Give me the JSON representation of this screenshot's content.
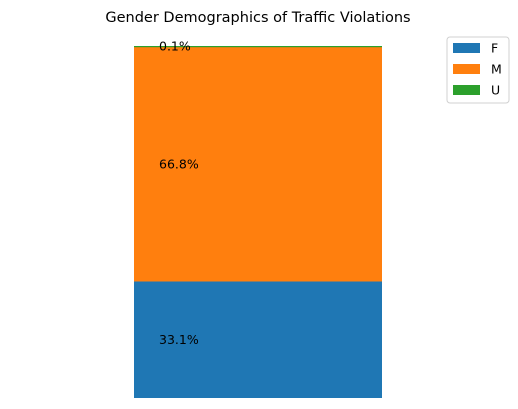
{
  "chart_data": {
    "type": "bar",
    "stacked": true,
    "normalized": true,
    "title": "Gender Demographics of Traffic Violations",
    "xlabel": "",
    "ylabel": "",
    "ylim": [
      0,
      100
    ],
    "axes_visible": false,
    "grid": false,
    "legend_position": "outside-top-right",
    "categories": [
      ""
    ],
    "series": [
      {
        "name": "F",
        "values": [
          33.1
        ],
        "label": "33.1%",
        "color": "#1f77b4"
      },
      {
        "name": "M",
        "values": [
          66.8
        ],
        "label": "66.8%",
        "color": "#ff7f0e"
      },
      {
        "name": "U",
        "values": [
          0.1
        ],
        "label": "0.1%",
        "color": "#2ca02c"
      }
    ]
  }
}
